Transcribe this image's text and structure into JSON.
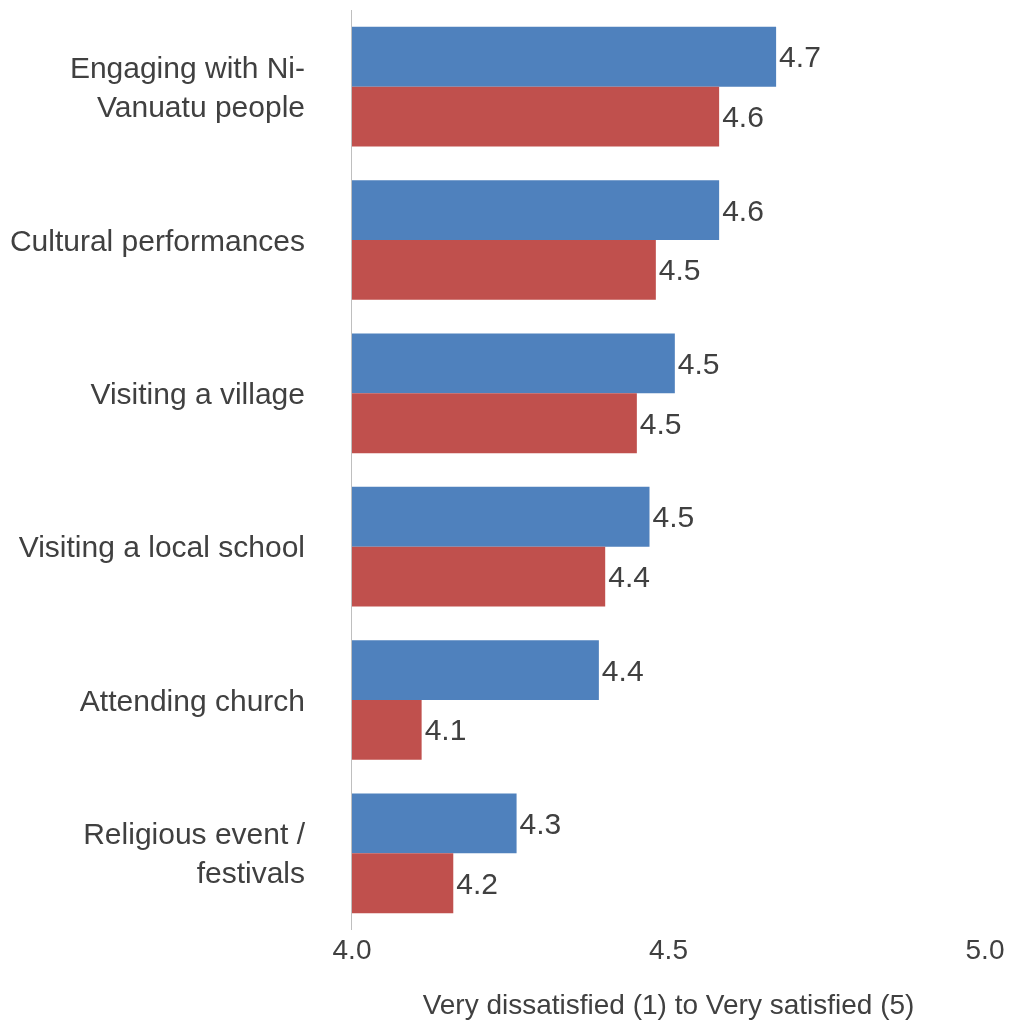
{
  "chart_data": {
    "type": "bar",
    "orientation": "horizontal",
    "categories": [
      "Engaging with Ni-Vanuatu people",
      "Cultural performances",
      "Visiting a village",
      "Visiting a local school",
      "Attending church",
      "Religious event / festivals"
    ],
    "series": [
      {
        "color": "#4f81bd",
        "values": [
          4.67,
          4.58,
          4.51,
          4.47,
          4.39,
          4.26
        ],
        "value_labels": [
          "4.7",
          "4.6",
          "4.5",
          "4.5",
          "4.4",
          "4.3"
        ]
      },
      {
        "color": "#c0504d",
        "values": [
          4.58,
          4.48,
          4.45,
          4.4,
          4.11,
          4.16
        ],
        "value_labels": [
          "4.6",
          "4.5",
          "4.5",
          "4.4",
          "4.1",
          "4.2"
        ]
      }
    ],
    "xlabel": "Very dissatisfied (1) to Very satisfied (5)",
    "xlim": [
      4.0,
      5.0
    ],
    "xticks": [
      {
        "value": 4.0,
        "label": "4.0"
      },
      {
        "value": 4.5,
        "label": "4.5"
      },
      {
        "value": 5.0,
        "label": "5.0"
      }
    ]
  }
}
